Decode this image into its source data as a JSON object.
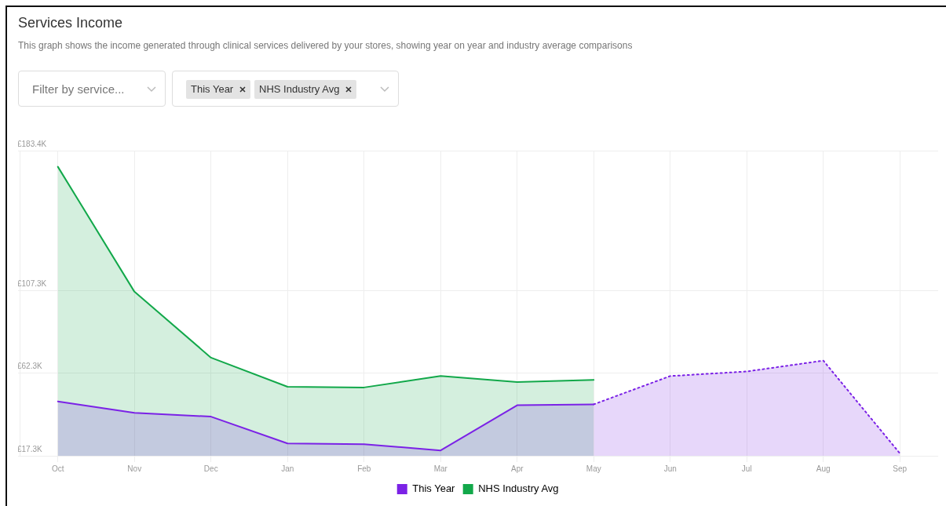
{
  "chart_data": {
    "type": "area",
    "title": "Services Income",
    "subtitle": "This graph shows the income generated through clinical services delivered by your stores, showing year on year and industry average comparisons",
    "annotations": [
      "Filter by service...",
      "This Year",
      "NHS Industry Avg"
    ],
    "categories": [
      "Oct",
      "Nov",
      "Dec",
      "Jan",
      "Feb",
      "Mar",
      "Apr",
      "May",
      "Jun",
      "Jul",
      "Aug",
      "Sep"
    ],
    "series": [
      {
        "name": "This Year",
        "color": "#7b22e6",
        "values": [
          46.9,
          40.7,
          38.6,
          24.0,
          23.6,
          20.2,
          44.8,
          45.3,
          null,
          null,
          null,
          null
        ]
      },
      {
        "color": "#7b22e6",
        "line_style": "dotted",
        "values": [
          null,
          null,
          null,
          null,
          null,
          null,
          null,
          45.3,
          60.7,
          63.2,
          69.1,
          18.6
        ]
      },
      {
        "name": "NHS Industry Avg",
        "color": "#12a84a",
        "values": [
          174.6,
          106.6,
          70.7,
          54.9,
          54.5,
          60.7,
          57.4,
          58.6,
          null,
          null,
          null,
          null
        ]
      }
    ],
    "ylim": [
      17.3,
      183.4
    ],
    "yticks": [
      {
        "value": 17.3,
        "label": "£17.3K"
      },
      {
        "value": 62.3,
        "label": "£62.3K"
      },
      {
        "value": 107.3,
        "label": "£107.3K"
      },
      {
        "value": 183.4,
        "label": "£183.4K"
      }
    ],
    "grid": true,
    "legend": "bottom",
    "marker": "none"
  }
}
